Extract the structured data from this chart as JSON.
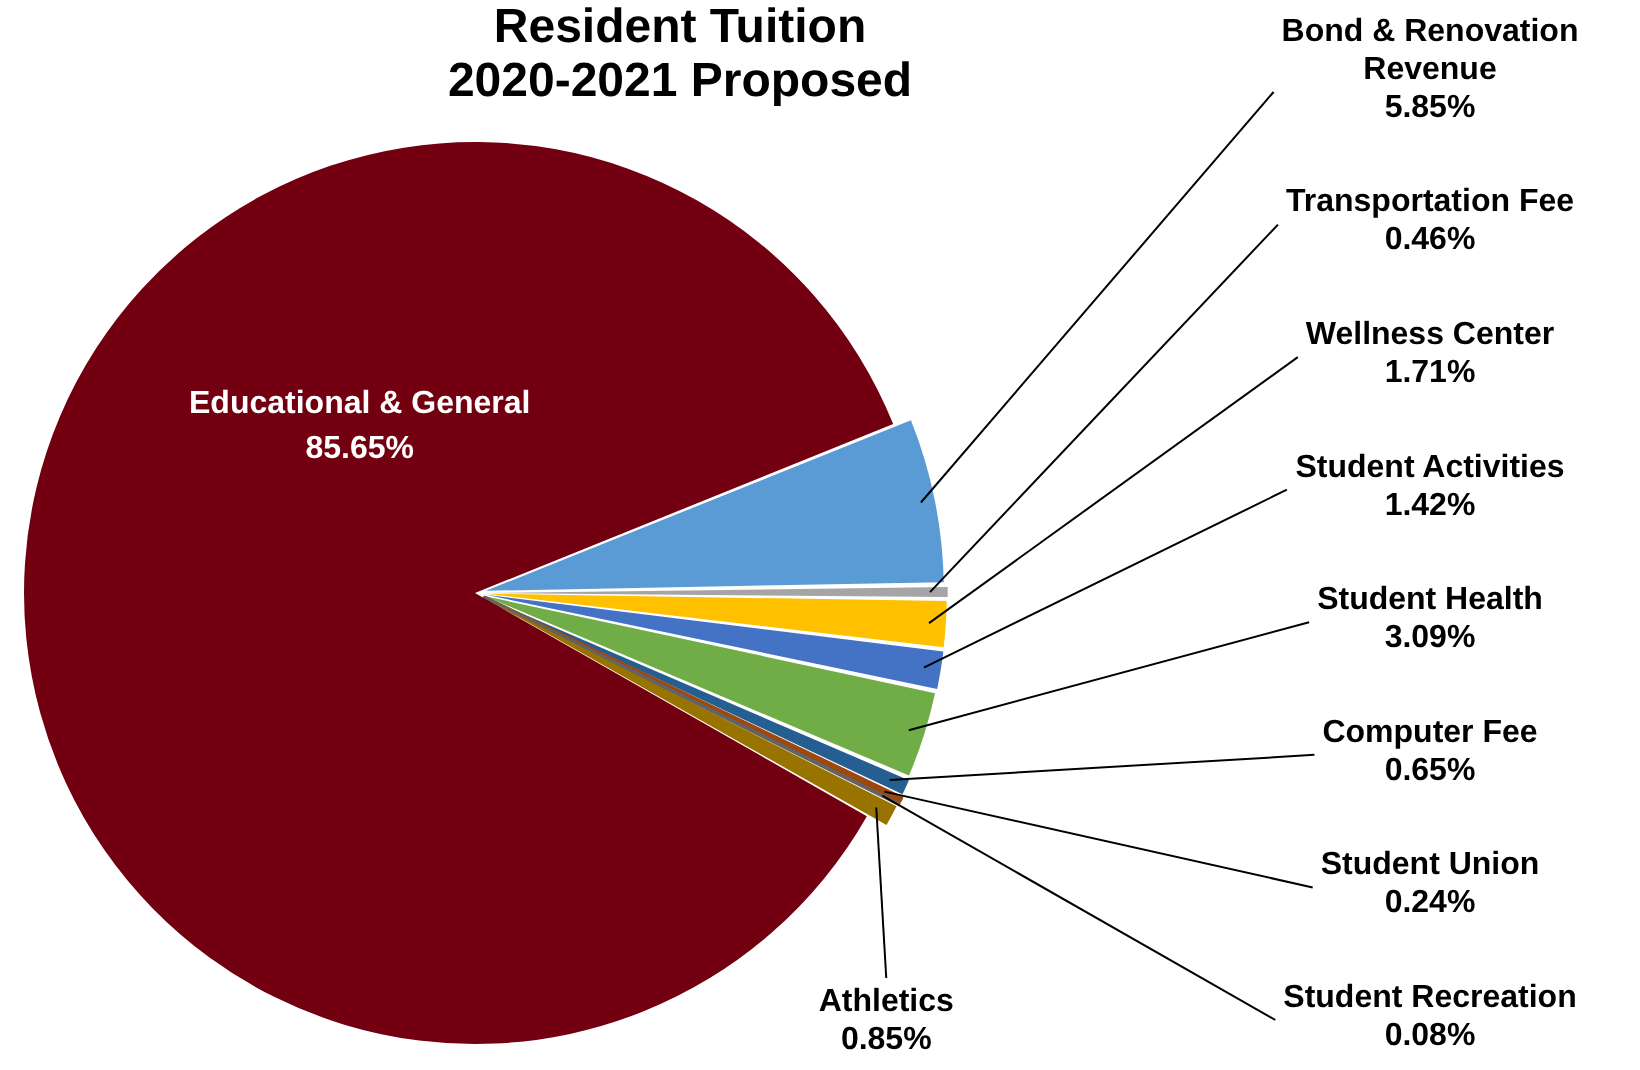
{
  "chart_data": {
    "type": "pie",
    "title": "Resident Tuition\n2020-2021 Proposed",
    "categories": [
      "Bond & Renovation Revenue",
      "Transportation Fee",
      "Wellness Center",
      "Student Activities",
      "Student Health",
      "Computer Fee",
      "Student Union",
      "Student Recreation",
      "Athletics",
      "Educational & General"
    ],
    "values": [
      5.85,
      0.46,
      1.71,
      1.42,
      3.09,
      0.65,
      0.24,
      0.08,
      0.85,
      85.65
    ],
    "value_labels": [
      "5.85%",
      "0.46%",
      "1.71%",
      "1.42%",
      "3.09%",
      "0.65%",
      "0.24%",
      "0.08%",
      "0.85%",
      "85.65%"
    ],
    "colors": [
      "#5b9bd5",
      "#a5a5a5",
      "#ffc000",
      "#4472c4",
      "#70ad47",
      "#255e91",
      "#9e480e",
      "#636363",
      "#997300",
      "#730010"
    ],
    "legend": false
  }
}
